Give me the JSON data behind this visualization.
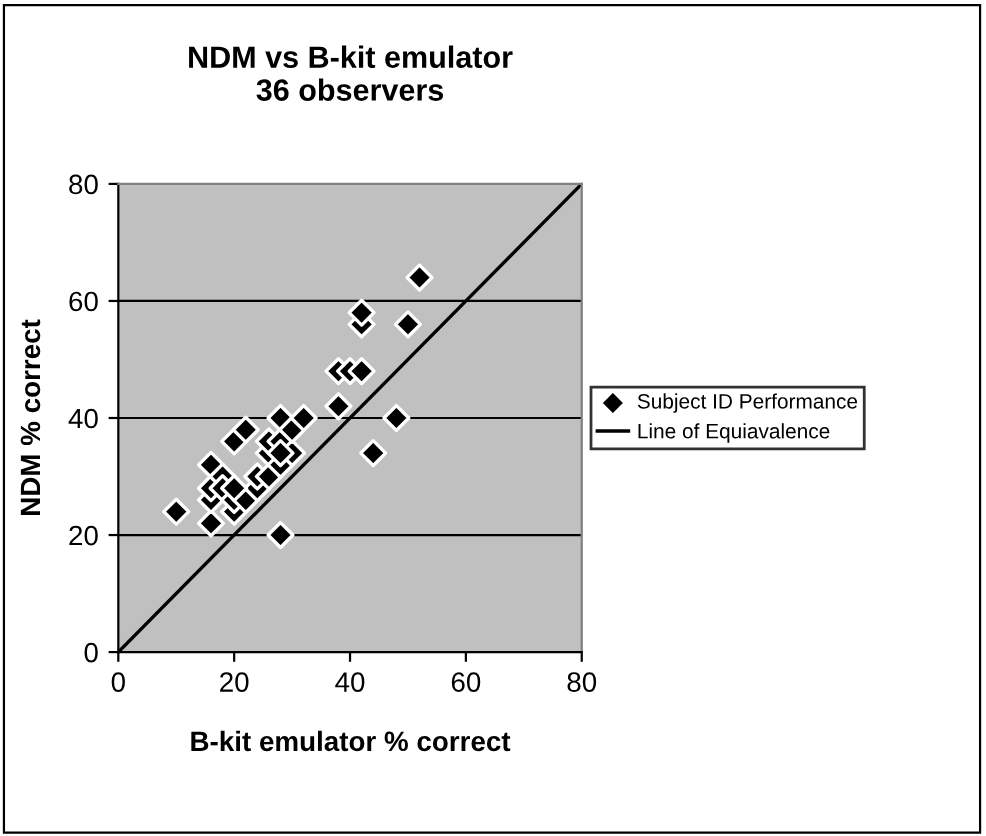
{
  "chart_data": {
    "type": "scatter",
    "title": "NDM vs B-kit emulator\n36 observers",
    "xlabel": "B-kit emulator % correct",
    "ylabel": "NDM % correct",
    "series": [
      {
        "name": "Subject ID Performance",
        "color": "#000000",
        "marker": "diamond",
        "x": [
          10,
          16,
          16,
          16,
          16,
          18,
          18,
          20,
          20,
          20,
          22,
          22,
          24,
          24,
          26,
          26,
          26,
          28,
          28,
          28,
          28,
          30,
          30,
          32,
          38,
          38,
          40,
          42,
          42,
          42,
          44,
          48,
          50,
          52,
          28,
          20
        ],
        "values": [
          24,
          22,
          26,
          28,
          32,
          30,
          28,
          24,
          26,
          36,
          38,
          26,
          28,
          30,
          30,
          34,
          36,
          32,
          36,
          40,
          20,
          34,
          38,
          40,
          42,
          48,
          48,
          48,
          56,
          58,
          34,
          40,
          56,
          64,
          34,
          28
        ]
      },
      {
        "name": "Line of Equiavalence",
        "type": "line",
        "color": "#000000",
        "marker": "none",
        "line_style": "solid",
        "x": [
          0,
          80
        ],
        "values": [
          0,
          80
        ]
      }
    ],
    "xlim": [
      0,
      80
    ],
    "ylim": [
      0,
      80
    ],
    "xticks": [
      0,
      20,
      40,
      60,
      80
    ],
    "yticks": [
      0,
      20,
      40,
      60,
      80
    ],
    "grid": "y",
    "legend": "right"
  }
}
